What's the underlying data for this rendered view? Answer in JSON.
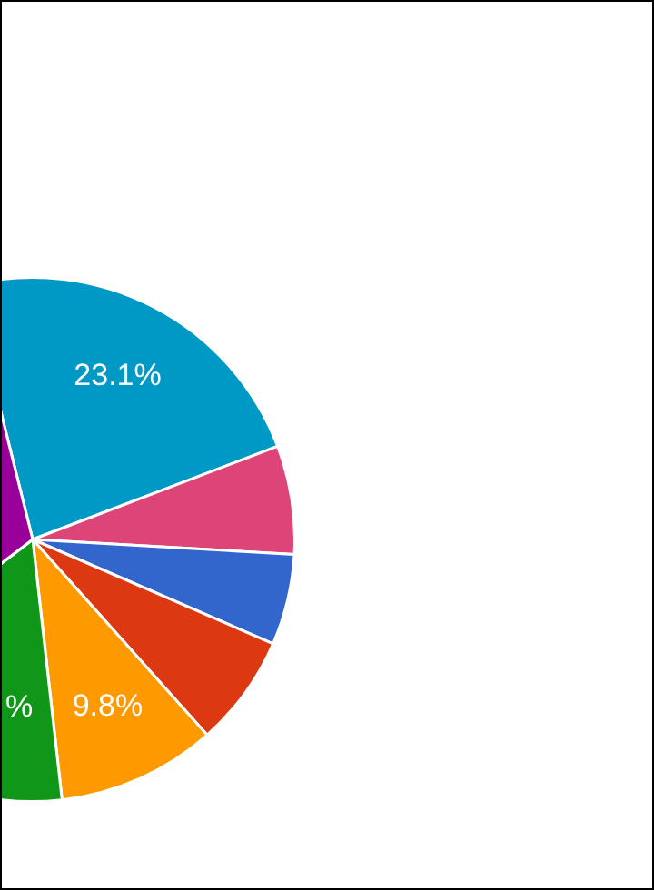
{
  "chart_data": {
    "type": "pie",
    "categories": [
      null,
      null,
      null,
      null,
      null,
      null,
      null
    ],
    "values": [
      23.1,
      6.7,
      5.6,
      6.9,
      9.8,
      16.4,
      31.5
    ],
    "colors": [
      "#0099c6",
      "#dd4477",
      "#3366cc",
      "#dc3912",
      "#ff9900",
      "#109618",
      "#990099"
    ],
    "value_labels": [
      "23.1%",
      null,
      null,
      null,
      "9.8%",
      "%",
      null
    ],
    "legend": false
  }
}
